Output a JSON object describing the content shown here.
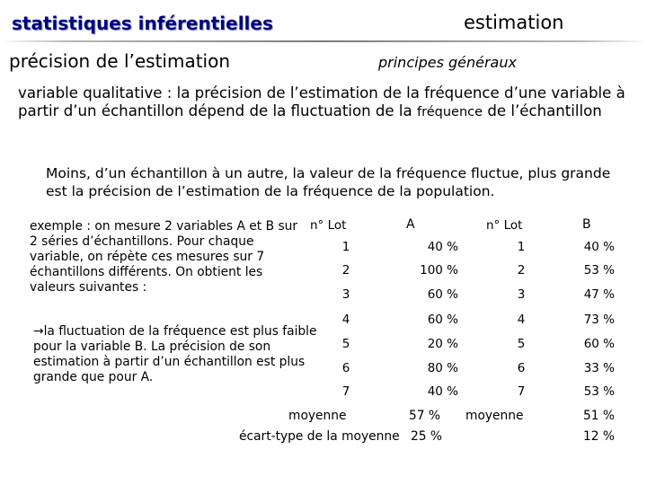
{
  "header": {
    "title": "statistiques inférentielles",
    "section": "estimation",
    "subtitle": "précision de l’estimation",
    "subsection": "principes généraux"
  },
  "intro": {
    "text": "variable qualitative : la précision de l’estimation de la fréquence d’une variable à partir d’un échantillon dépend de la fluctuation de la",
    "text_small": "fréquence",
    "text_end": "de l’échantillon"
  },
  "rule": "Moins, d’un échantillon à un autre, la valeur de la fréquence fluctue, plus grande est la précision de l’estimation de la fréquence de la population.",
  "example": "exemple : on mesure 2 variables A et B sur 2 séries d’échantillons. Pour chaque variable, on répète ces mesures sur 7 échantillons différents. On obtient les valeurs suivantes :",
  "conclusion": {
    "arrow": "→",
    "text": "la fluctuation de la fréquence est plus faible pour la variable B. La précision de son estimation à partir d’un échantillon est plus grande que pour A."
  },
  "table": {
    "headers": {
      "lot": "n° Lot",
      "a": "A",
      "b": "B"
    },
    "rows": [
      {
        "lot_a": "1",
        "a": "40 %",
        "lot_b": "1",
        "b": "40 %"
      },
      {
        "lot_a": "2",
        "a": "100 %",
        "lot_b": "2",
        "b": "53 %"
      },
      {
        "lot_a": "3",
        "a": "60 %",
        "lot_b": "3",
        "b": "47 %"
      },
      {
        "lot_a": "4",
        "a": "60 %",
        "lot_b": "4",
        "b": "73 %"
      },
      {
        "lot_a": "5",
        "a": "20 %",
        "lot_b": "5",
        "b": "60 %"
      },
      {
        "lot_a": "6",
        "a": "80 %",
        "lot_b": "6",
        "b": "33 %"
      },
      {
        "lot_a": "7",
        "a": "40 %",
        "lot_b": "7",
        "b": "53 %"
      }
    ],
    "mean_label": "moyenne",
    "mean_a": "57 %",
    "mean_b": "51 %",
    "sd_label": "écart-type de la moyenne",
    "sd_a": "25 %",
    "sd_b": "12 %"
  },
  "colors": {
    "title": "#000080",
    "text": "#000000",
    "background": "#ffffff"
  }
}
